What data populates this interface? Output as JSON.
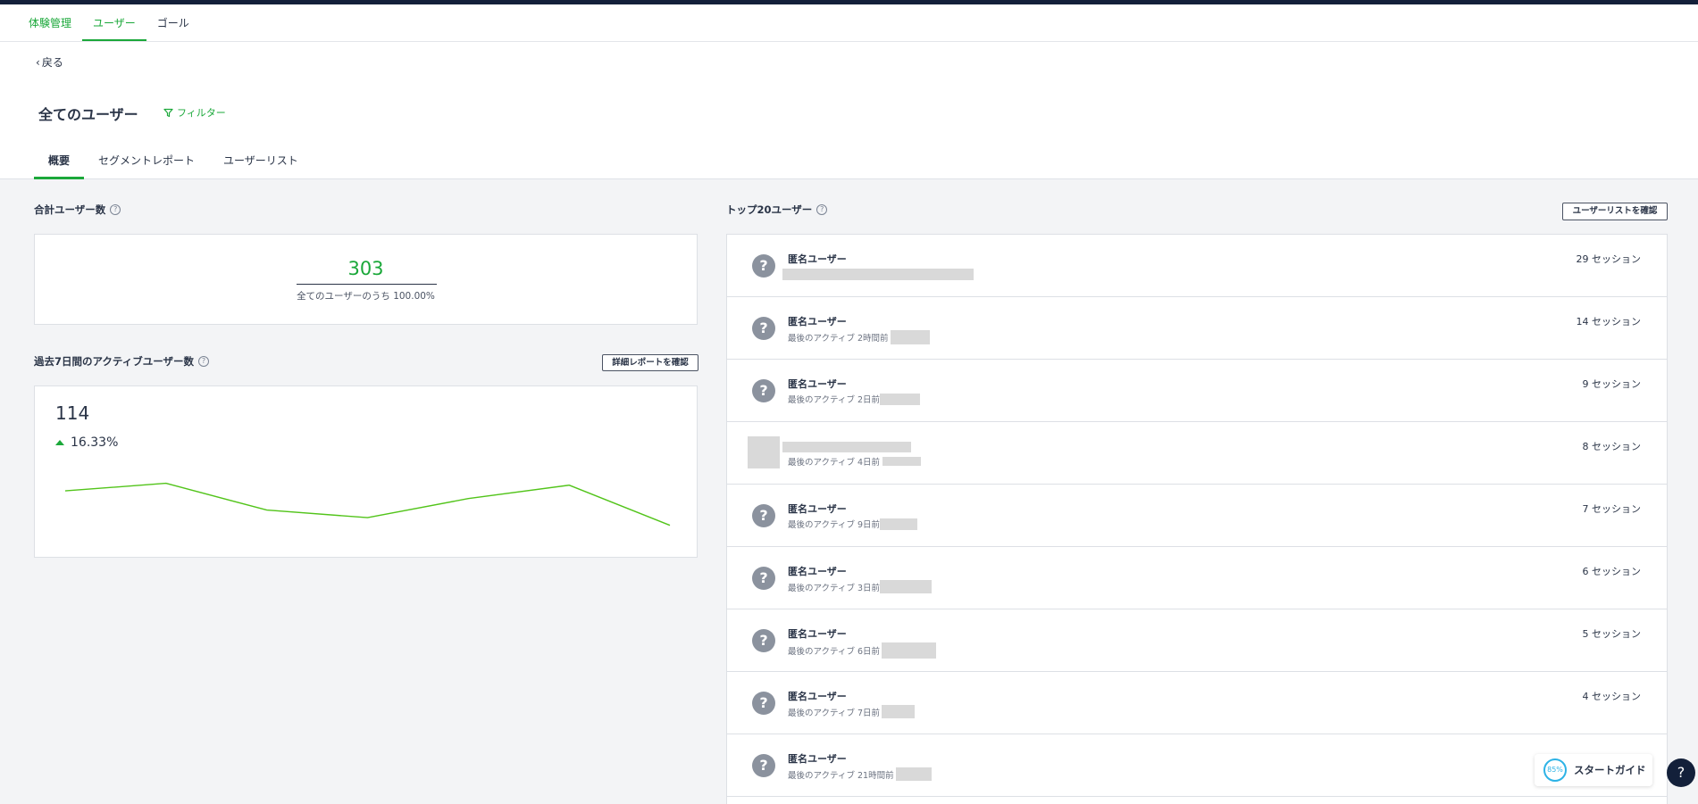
{
  "nav": {
    "items": [
      "体験管理",
      "ユーザー",
      "ゴール"
    ]
  },
  "back_label": "戻る",
  "page_title": "全てのユーザー",
  "filter_label": "フィルター",
  "tabs": [
    "概要",
    "セグメントレポート",
    "ユーザーリスト"
  ],
  "total_users": {
    "label": "合計ユーザー数",
    "value": "303",
    "sub": "全てのユーザーのうち 100.00%"
  },
  "active_users": {
    "label": "過去7日間のアクティブユーザー数",
    "button": "詳細レポートを確認",
    "value": "114",
    "change": "16.33%"
  },
  "chart_data": {
    "type": "line",
    "values": [
      17,
      19,
      12,
      10,
      15,
      18.5,
      8
    ],
    "ylim": [
      0,
      35
    ],
    "title": "",
    "xlabel": "",
    "ylabel": ""
  },
  "top_users": {
    "label": "トップ20ユーザー",
    "button": "ユーザーリストを確認",
    "rows": [
      {
        "name": "匿名ユーザー",
        "sub": "",
        "sessions": "29 セッション"
      },
      {
        "name": "匿名ユーザー",
        "sub": "最後のアクティブ 2時間前",
        "sessions": "14 セッション"
      },
      {
        "name": "匿名ユーザー",
        "sub": "最後のアクティブ 2日前",
        "sessions": "9 セッション"
      },
      {
        "name": "",
        "sub": "最後のアクティブ 4日前",
        "sessions": "8 セッション"
      },
      {
        "name": "匿名ユーザー",
        "sub": "最後のアクティブ 9日前",
        "sessions": "7 セッション"
      },
      {
        "name": "匿名ユーザー",
        "sub": "最後のアクティブ 3日前",
        "sessions": "6 セッション"
      },
      {
        "name": "匿名ユーザー",
        "sub": "最後のアクティブ 6日前",
        "sessions": "5 セッション"
      },
      {
        "name": "匿名ユーザー",
        "sub": "最後のアクティブ 7日前",
        "sessions": "4 セッション"
      },
      {
        "name": "匿名ユーザー",
        "sub": "最後のアクティブ 21時間前",
        "sessions": ""
      }
    ]
  },
  "start_guide": {
    "progress": "85%",
    "label": "スタートガイド"
  },
  "help_label": "?",
  "icons": {
    "back": "chevron-left-icon",
    "filter": "filter-icon",
    "help": "question-circle-icon",
    "avatar": "anonymous-user-icon",
    "trend": "triangle-up-icon"
  },
  "colors": {
    "accent": "#1ba83a",
    "topbar": "#13203a",
    "guide": "#2db3e6"
  }
}
